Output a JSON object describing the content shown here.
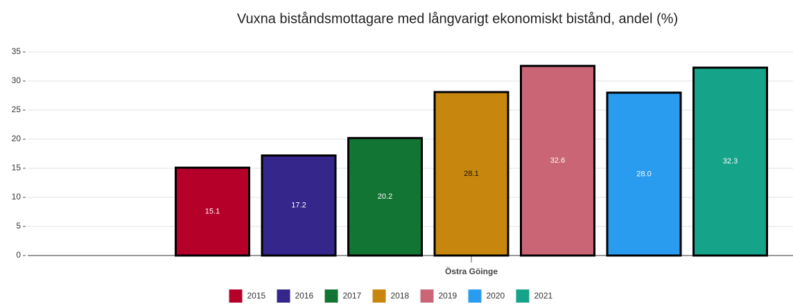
{
  "chart_data": {
    "type": "bar",
    "title": "Vuxna biståndsmottagare med långvarigt ekonomiskt bistånd, andel (%)",
    "categories": [
      "Östra Göinge"
    ],
    "series": [
      {
        "name": "2015",
        "color": "#b5002a",
        "values": [
          15.1
        ]
      },
      {
        "name": "2016",
        "color": "#35268c",
        "values": [
          17.2
        ]
      },
      {
        "name": "2017",
        "color": "#137533",
        "values": [
          20.2
        ]
      },
      {
        "name": "2018",
        "color": "#c7870e",
        "values": [
          28.1
        ]
      },
      {
        "name": "2019",
        "color": "#c96574",
        "values": [
          32.6
        ]
      },
      {
        "name": "2020",
        "color": "#2a9cf0",
        "values": [
          28.0
        ],
        "value_labels": [
          "28.0"
        ]
      },
      {
        "name": "2021",
        "color": "#15a38a",
        "values": [
          32.3
        ]
      }
    ],
    "ylim": [
      0,
      35
    ],
    "yticks": [
      0,
      5,
      10,
      15,
      20,
      25,
      30,
      35
    ],
    "grid": true,
    "legend": "bottom"
  }
}
